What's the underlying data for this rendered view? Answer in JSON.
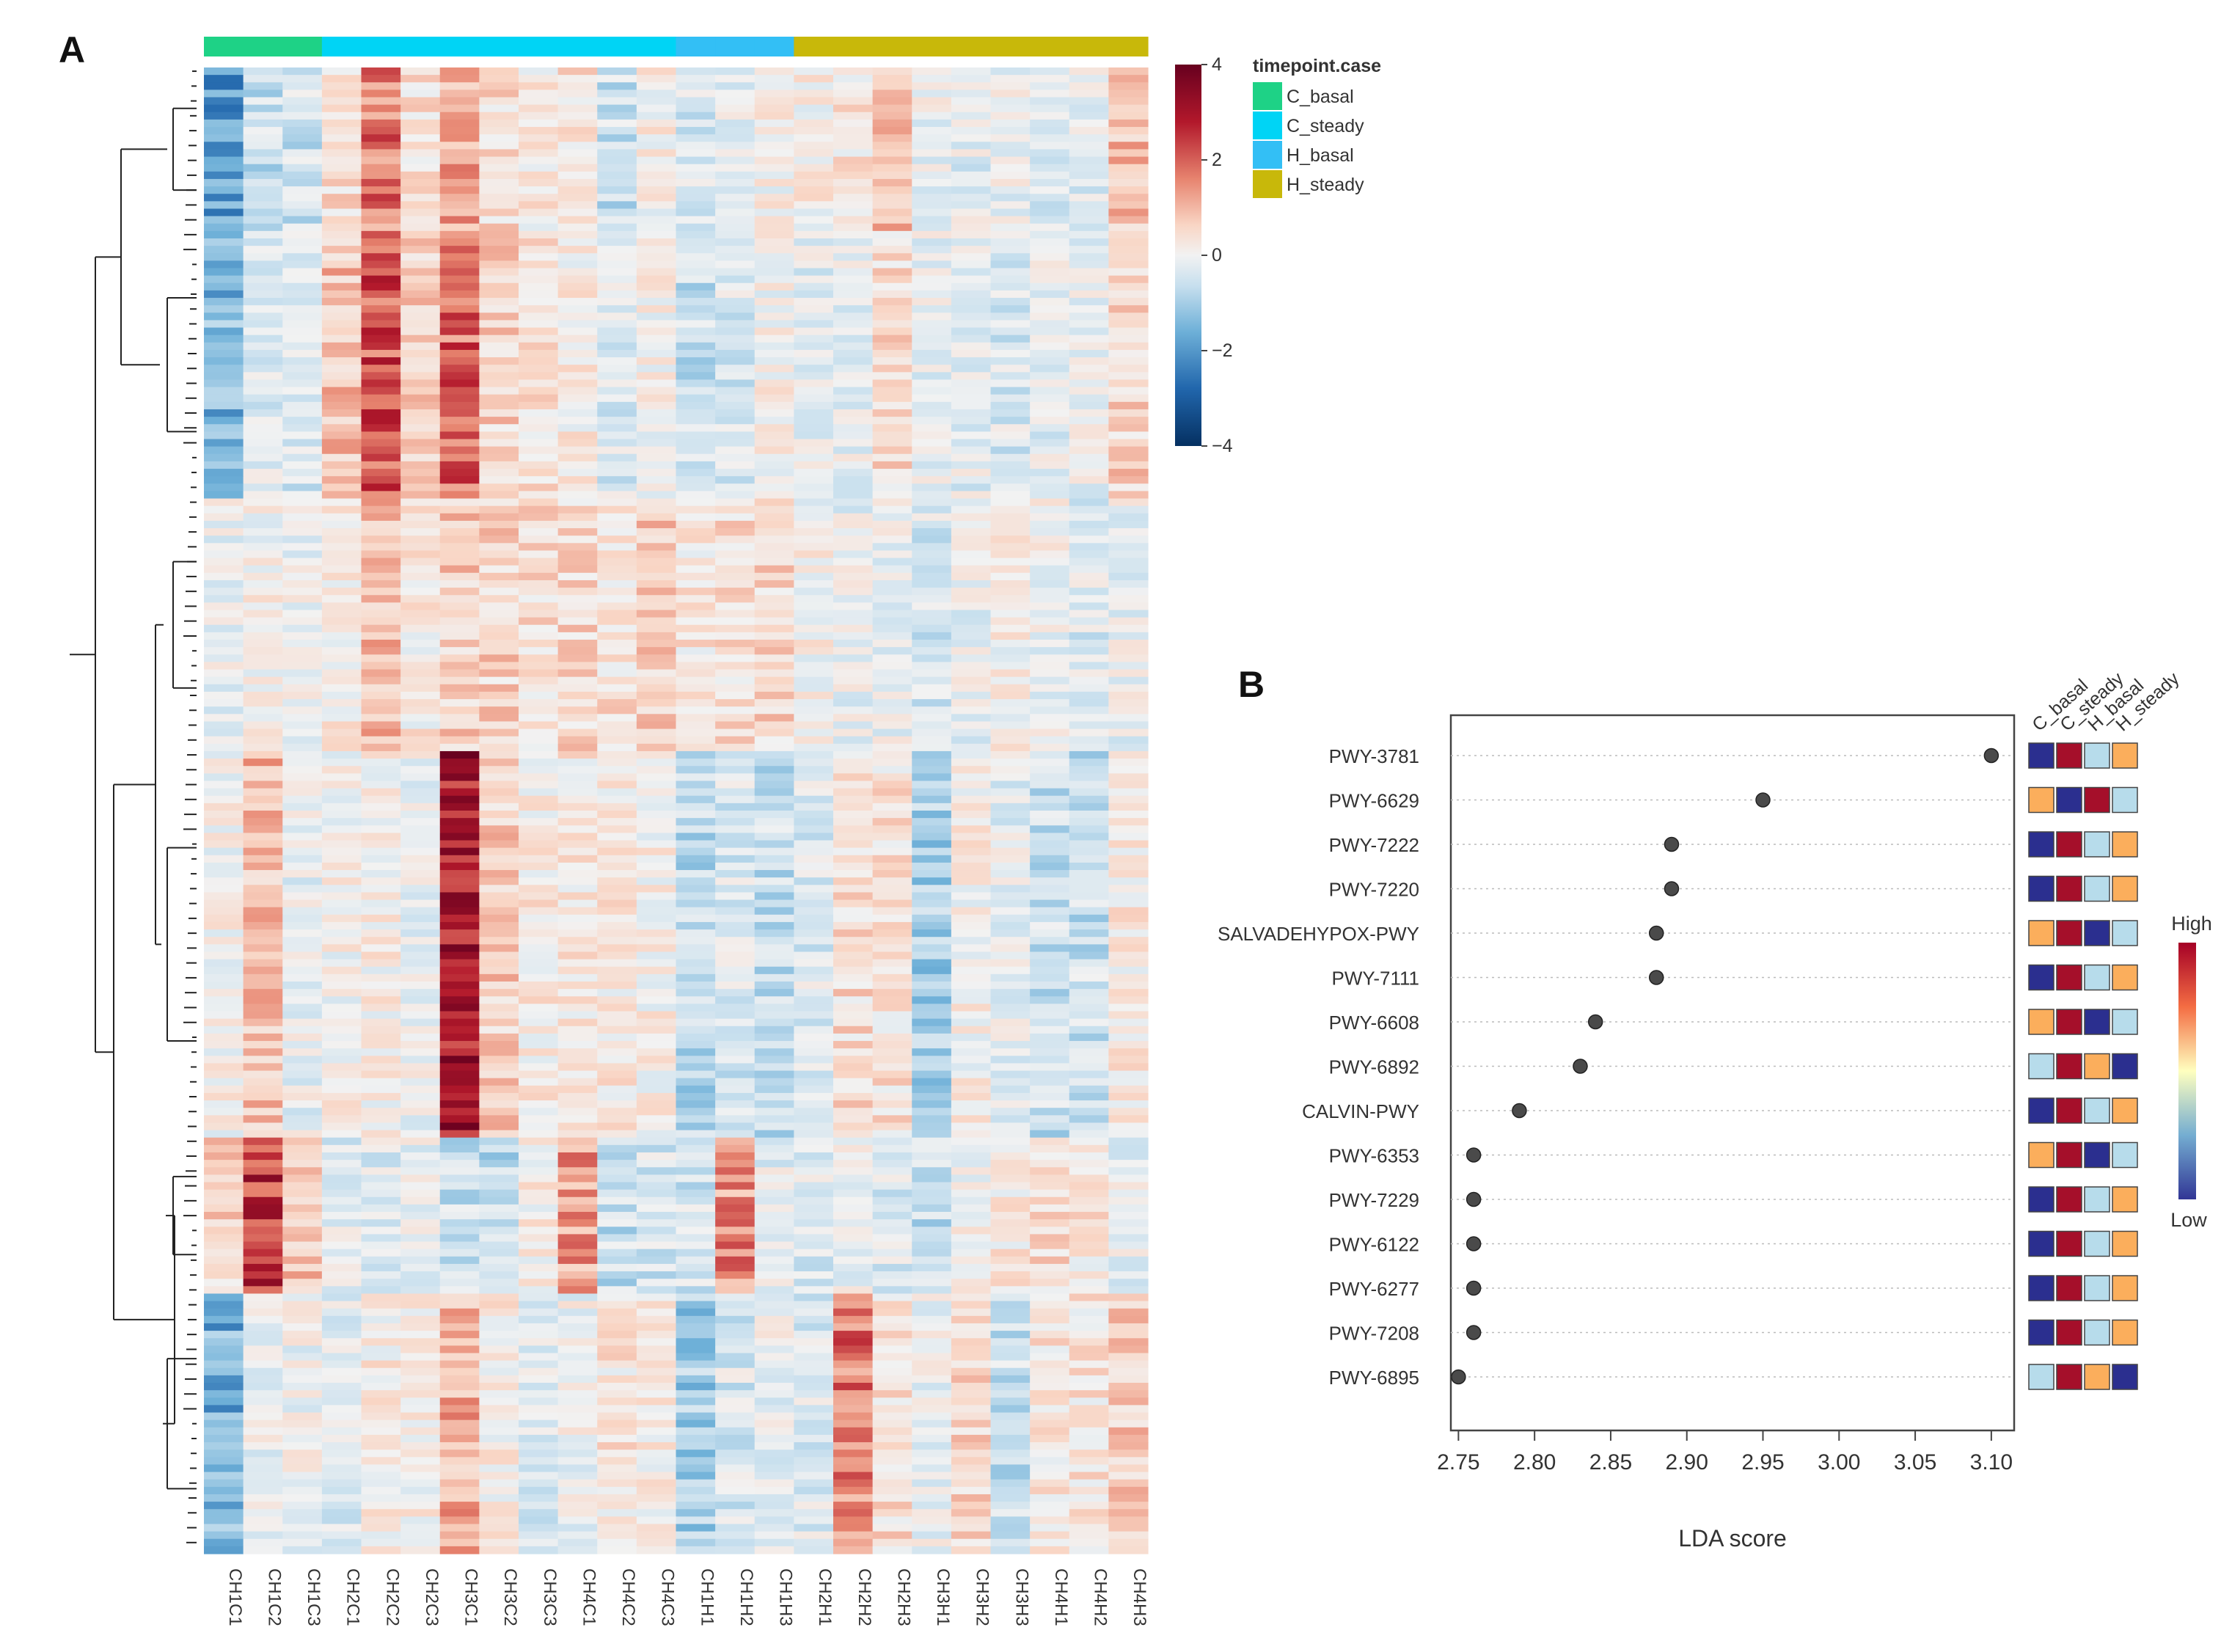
{
  "panel_labels": [
    "A",
    "B"
  ],
  "chart_data": [
    {
      "type": "heatmap",
      "columns": [
        "CH1C1",
        "CH1C2",
        "CH1C3",
        "CH2C1",
        "CH2C2",
        "CH2C3",
        "CH3C1",
        "CH3C2",
        "CH3C3",
        "CH4C1",
        "CH4C2",
        "CH4C3",
        "CH1H1",
        "CH1H2",
        "CH1H3",
        "CH2H1",
        "CH2H2",
        "CH2H3",
        "CH3H1",
        "CH3H2",
        "CH3H3",
        "CH4H1",
        "CH4H2",
        "CH4H3"
      ],
      "column_groups": [
        "C_basal",
        "C_basal",
        "C_basal",
        "C_steady",
        "C_steady",
        "C_steady",
        "C_steady",
        "C_steady",
        "C_steady",
        "C_steady",
        "C_steady",
        "C_steady",
        "H_basal",
        "H_basal",
        "H_basal",
        "H_steady",
        "H_steady",
        "H_steady",
        "H_steady",
        "H_steady",
        "H_steady",
        "H_steady",
        "H_steady",
        "H_steady"
      ],
      "annotation_legend": {
        "title": "timepoint.case",
        "items": [
          {
            "label": "C_basal",
            "color": "#1ed286"
          },
          {
            "label": "C_steady",
            "color": "#00d4f5"
          },
          {
            "label": "H_basal",
            "color": "#33bff5"
          },
          {
            "label": "H_steady",
            "color": "#c8b80a"
          }
        ]
      },
      "colorbar": {
        "min": -4,
        "max": 4,
        "ticks": [
          "4",
          "2",
          "0",
          "−2",
          "−4"
        ]
      },
      "row_count": 200,
      "row_dendrogram": true,
      "values": "row-scaled abundance z-scores (approximate, estimated visually)"
    },
    {
      "type": "scatter",
      "title": "",
      "xlabel": "LDA score",
      "xlim": [
        2.745,
        3.115
      ],
      "xticks": [
        "2.75",
        "2.80",
        "2.85",
        "2.90",
        "2.95",
        "3.00",
        "3.05",
        "3.10"
      ],
      "pathways": [
        {
          "name": "PWY-3781",
          "lda": 3.1,
          "levels": [
            "low",
            "high",
            "mid",
            "midhigh"
          ]
        },
        {
          "name": "PWY-6629",
          "lda": 2.95,
          "levels": [
            "midhigh",
            "low",
            "high",
            "mid"
          ]
        },
        {
          "name": "PWY-7222",
          "lda": 2.89,
          "levels": [
            "low",
            "high",
            "mid",
            "midhigh"
          ]
        },
        {
          "name": "PWY-7220",
          "lda": 2.89,
          "levels": [
            "low",
            "high",
            "mid",
            "midhigh"
          ]
        },
        {
          "name": "SALVADEHYPOX-PWY",
          "lda": 2.88,
          "levels": [
            "midhigh",
            "high",
            "low",
            "mid"
          ]
        },
        {
          "name": "PWY-7111",
          "lda": 2.88,
          "levels": [
            "low",
            "high",
            "mid",
            "midhigh"
          ]
        },
        {
          "name": "PWY-6608",
          "lda": 2.84,
          "levels": [
            "midhigh",
            "high",
            "low",
            "mid"
          ]
        },
        {
          "name": "PWY-6892",
          "lda": 2.83,
          "levels": [
            "mid",
            "high",
            "midhigh",
            "low"
          ]
        },
        {
          "name": "CALVIN-PWY",
          "lda": 2.79,
          "levels": [
            "low",
            "high",
            "mid",
            "midhigh"
          ]
        },
        {
          "name": "PWY-6353",
          "lda": 2.76,
          "levels": [
            "midhigh",
            "high",
            "low",
            "mid"
          ]
        },
        {
          "name": "PWY-7229",
          "lda": 2.76,
          "levels": [
            "low",
            "high",
            "mid",
            "midhigh"
          ]
        },
        {
          "name": "PWY-6122",
          "lda": 2.76,
          "levels": [
            "low",
            "high",
            "mid",
            "midhigh"
          ]
        },
        {
          "name": "PWY-6277",
          "lda": 2.76,
          "levels": [
            "low",
            "high",
            "mid",
            "midhigh"
          ]
        },
        {
          "name": "PWY-7208",
          "lda": 2.76,
          "levels": [
            "low",
            "high",
            "mid",
            "midhigh"
          ]
        },
        {
          "name": "PWY-6895",
          "lda": 2.75,
          "levels": [
            "mid",
            "high",
            "midhigh",
            "low"
          ]
        }
      ],
      "group_headers": [
        "C_basal",
        "C_steady",
        "H_basal",
        "H_steady"
      ],
      "level_colors": {
        "low": "#2b2f8f",
        "mid": "#b7dceb",
        "midhigh": "#fbae5c",
        "high": "#a50f2a"
      },
      "legend": {
        "high": "High",
        "low": "Low"
      }
    }
  ]
}
